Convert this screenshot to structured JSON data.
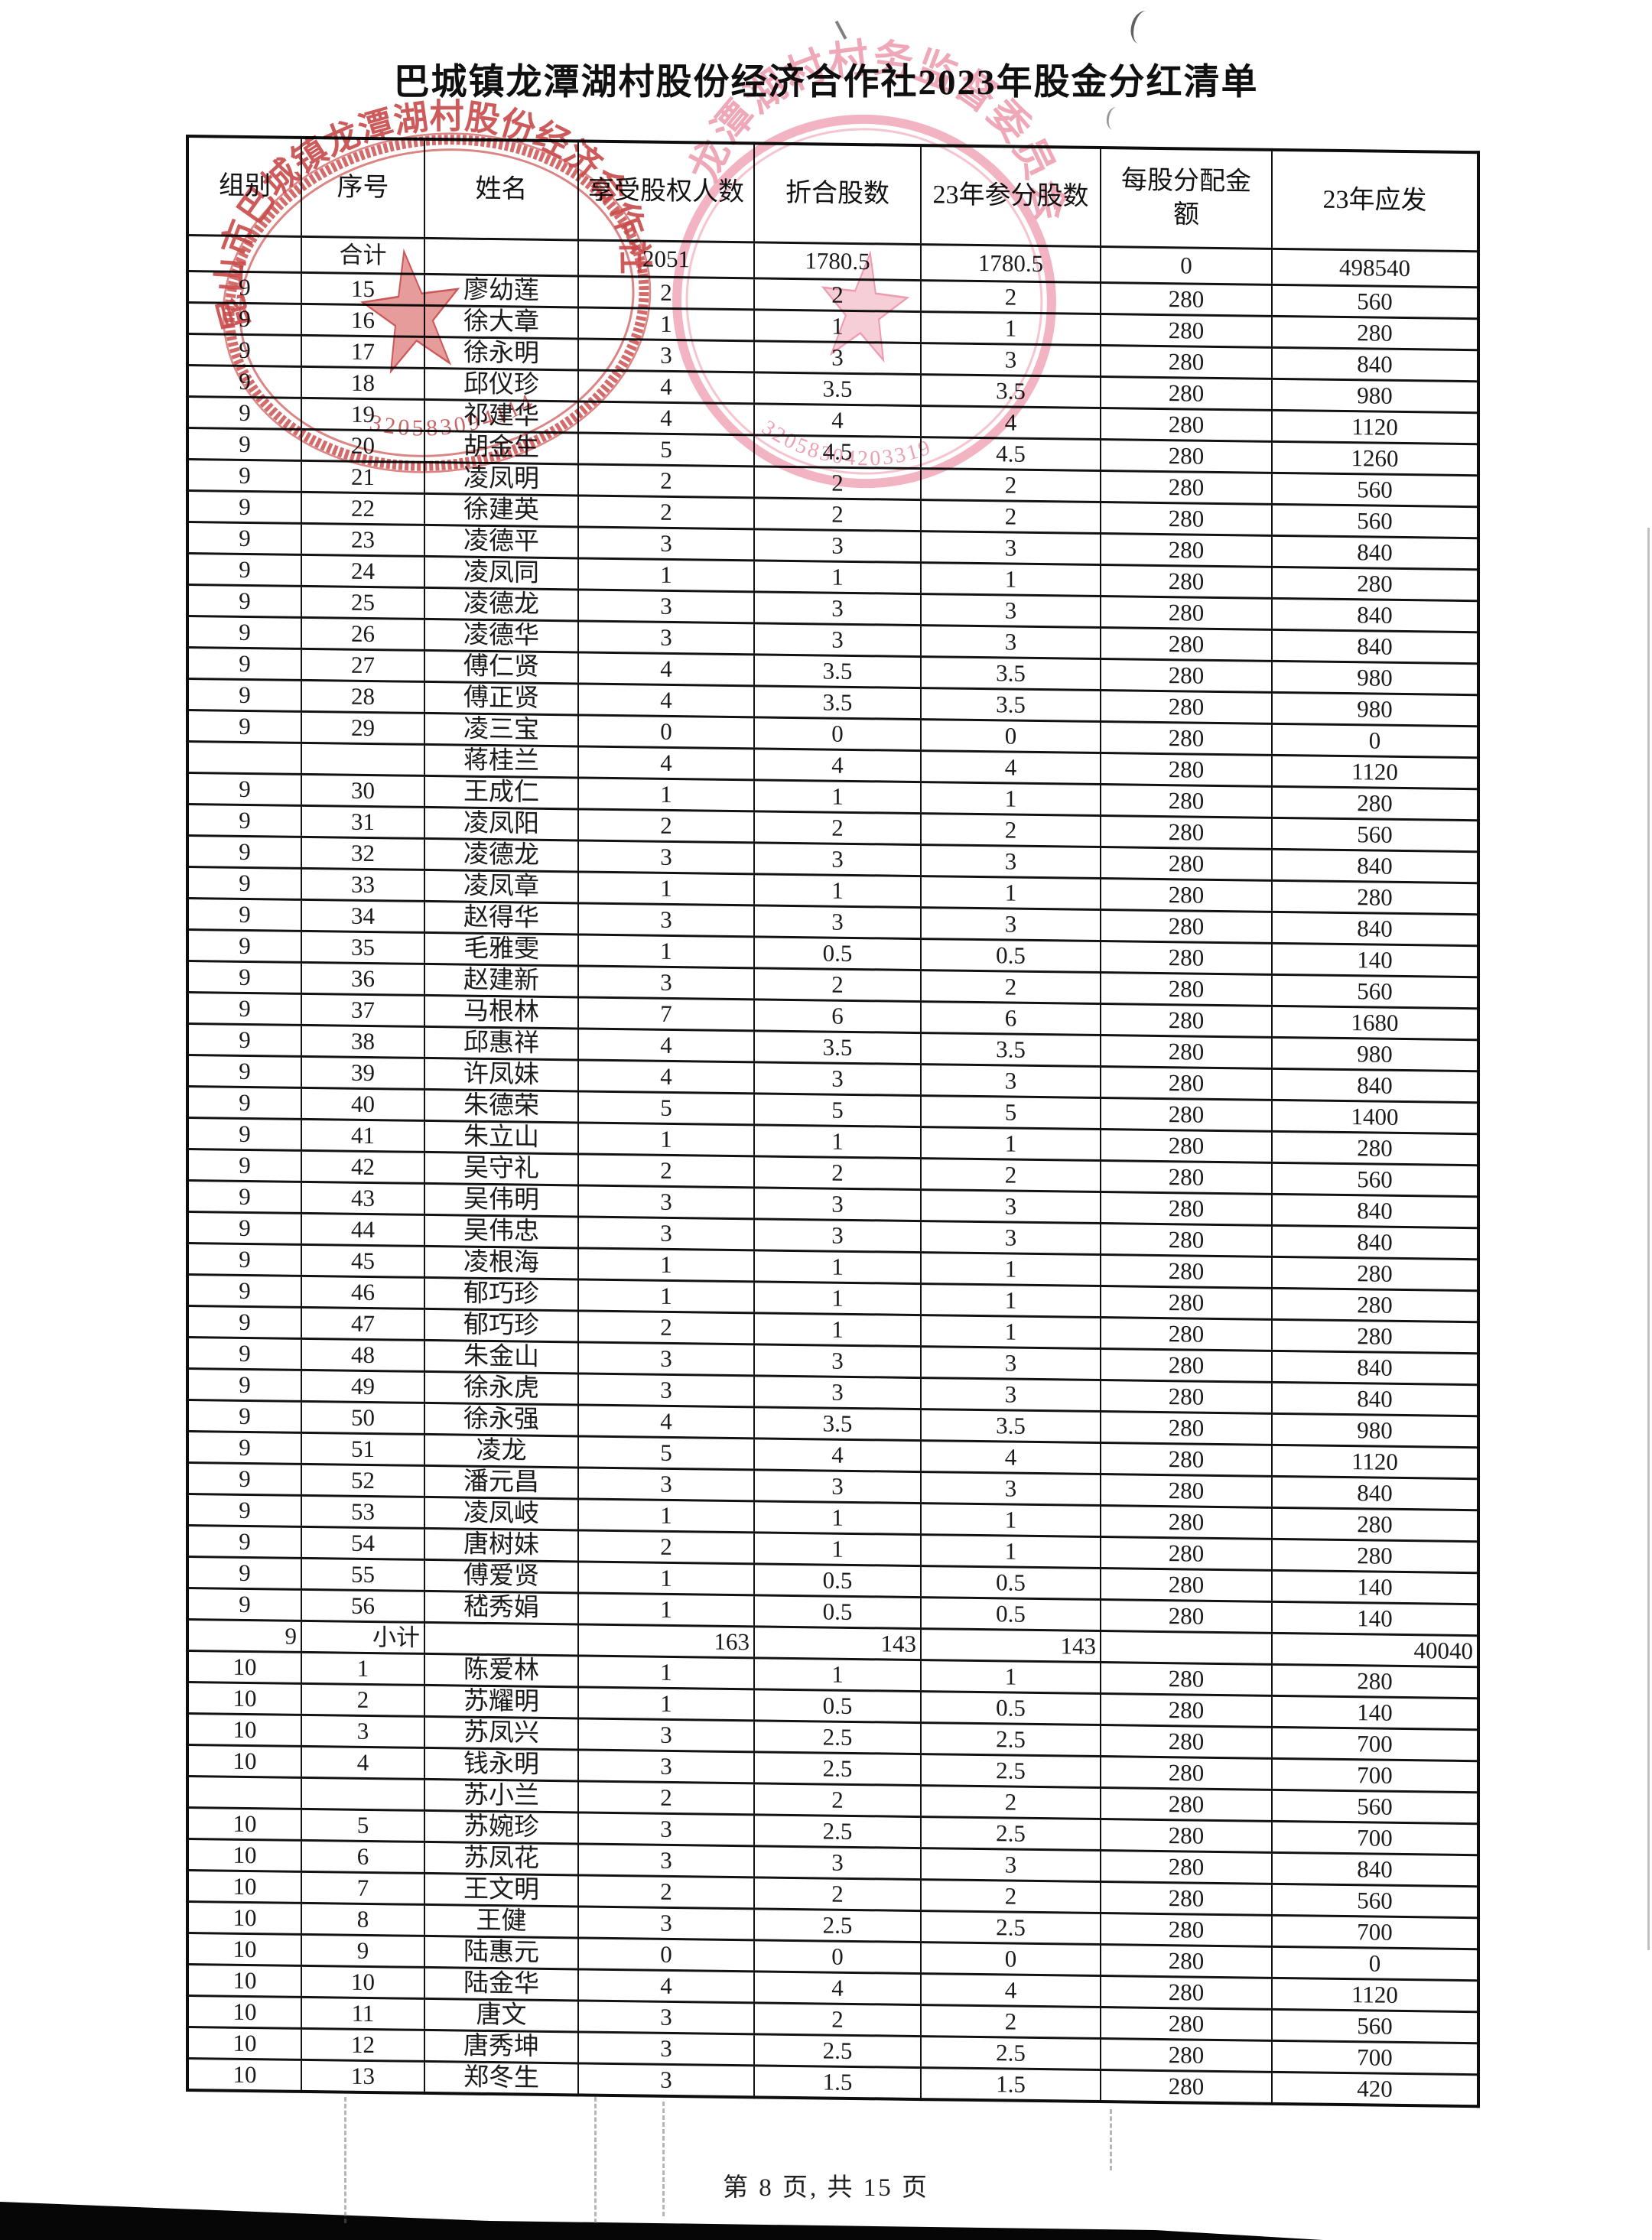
{
  "title": "巴城镇龙潭湖村股份经济合作社2023年股金分红清单",
  "footer": {
    "page_label": "第 8 页, 共 15 页"
  },
  "colors": {
    "stamp_red": "#c94343",
    "stamp_pink": "#efa2b4",
    "ink": "#141414"
  },
  "stamps": {
    "left": {
      "org": "昆山市巴城镇龙潭湖村股份经济合作社",
      "number": "320583094114"
    },
    "right": {
      "org": "龙潭湖村村务监督委员会",
      "number": "32058304203319"
    }
  },
  "table": {
    "headers": [
      "组别",
      "序号",
      "姓名",
      "享受股权人数",
      "折合股数",
      "23年参分股数",
      "每股分配金\n额",
      "23年应发"
    ],
    "rows": [
      [
        "",
        "合计",
        "",
        "2051",
        "1780.5",
        "1780.5",
        "0",
        "498540"
      ],
      [
        "9",
        "15",
        "廖幼莲",
        "2",
        "2",
        "2",
        "280",
        "560"
      ],
      [
        "9",
        "16",
        "徐大章",
        "1",
        "1",
        "1",
        "280",
        "280"
      ],
      [
        "9",
        "17",
        "徐永明",
        "3",
        "3",
        "3",
        "280",
        "840"
      ],
      [
        "9",
        "18",
        "邱仪珍",
        "4",
        "3.5",
        "3.5",
        "280",
        "980"
      ],
      [
        "9",
        "19",
        "祁建华",
        "4",
        "4",
        "4",
        "280",
        "1120"
      ],
      [
        "9",
        "20",
        "胡金生",
        "5",
        "4.5",
        "4.5",
        "280",
        "1260"
      ],
      [
        "9",
        "21",
        "凌凤明",
        "2",
        "2",
        "2",
        "280",
        "560"
      ],
      [
        "9",
        "22",
        "徐建英",
        "2",
        "2",
        "2",
        "280",
        "560"
      ],
      [
        "9",
        "23",
        "凌德平",
        "3",
        "3",
        "3",
        "280",
        "840"
      ],
      [
        "9",
        "24",
        "凌凤同",
        "1",
        "1",
        "1",
        "280",
        "280"
      ],
      [
        "9",
        "25",
        "凌德龙",
        "3",
        "3",
        "3",
        "280",
        "840"
      ],
      [
        "9",
        "26",
        "凌德华",
        "3",
        "3",
        "3",
        "280",
        "840"
      ],
      [
        "9",
        "27",
        "傅仁贤",
        "4",
        "3.5",
        "3.5",
        "280",
        "980"
      ],
      [
        "9",
        "28",
        "傅正贤",
        "4",
        "3.5",
        "3.5",
        "280",
        "980"
      ],
      [
        "9",
        "29",
        "凌三宝",
        "0",
        "0",
        "0",
        "280",
        "0"
      ],
      [
        "",
        "",
        "蒋桂兰",
        "4",
        "4",
        "4",
        "280",
        "1120"
      ],
      [
        "9",
        "30",
        "王成仁",
        "1",
        "1",
        "1",
        "280",
        "280"
      ],
      [
        "9",
        "31",
        "凌凤阳",
        "2",
        "2",
        "2",
        "280",
        "560"
      ],
      [
        "9",
        "32",
        "凌德龙",
        "3",
        "3",
        "3",
        "280",
        "840"
      ],
      [
        "9",
        "33",
        "凌凤章",
        "1",
        "1",
        "1",
        "280",
        "280"
      ],
      [
        "9",
        "34",
        "赵得华",
        "3",
        "3",
        "3",
        "280",
        "840"
      ],
      [
        "9",
        "35",
        "毛雅雯",
        "1",
        "0.5",
        "0.5",
        "280",
        "140"
      ],
      [
        "9",
        "36",
        "赵建新",
        "3",
        "2",
        "2",
        "280",
        "560"
      ],
      [
        "9",
        "37",
        "马根林",
        "7",
        "6",
        "6",
        "280",
        "1680"
      ],
      [
        "9",
        "38",
        "邱惠祥",
        "4",
        "3.5",
        "3.5",
        "280",
        "980"
      ],
      [
        "9",
        "39",
        "许凤妹",
        "4",
        "3",
        "3",
        "280",
        "840"
      ],
      [
        "9",
        "40",
        "朱德荣",
        "5",
        "5",
        "5",
        "280",
        "1400"
      ],
      [
        "9",
        "41",
        "朱立山",
        "1",
        "1",
        "1",
        "280",
        "280"
      ],
      [
        "9",
        "42",
        "吴守礼",
        "2",
        "2",
        "2",
        "280",
        "560"
      ],
      [
        "9",
        "43",
        "吴伟明",
        "3",
        "3",
        "3",
        "280",
        "840"
      ],
      [
        "9",
        "44",
        "吴伟忠",
        "3",
        "3",
        "3",
        "280",
        "840"
      ],
      [
        "9",
        "45",
        "凌根海",
        "1",
        "1",
        "1",
        "280",
        "280"
      ],
      [
        "9",
        "46",
        "郁巧珍",
        "1",
        "1",
        "1",
        "280",
        "280"
      ],
      [
        "9",
        "47",
        "郁巧珍",
        "2",
        "1",
        "1",
        "280",
        "280"
      ],
      [
        "9",
        "48",
        "朱金山",
        "3",
        "3",
        "3",
        "280",
        "840"
      ],
      [
        "9",
        "49",
        "徐永虎",
        "3",
        "3",
        "3",
        "280",
        "840"
      ],
      [
        "9",
        "50",
        "徐永强",
        "4",
        "3.5",
        "3.5",
        "280",
        "980"
      ],
      [
        "9",
        "51",
        "凌龙",
        "5",
        "4",
        "4",
        "280",
        "1120"
      ],
      [
        "9",
        "52",
        "潘元昌",
        "3",
        "3",
        "3",
        "280",
        "840"
      ],
      [
        "9",
        "53",
        "凌凤岐",
        "1",
        "1",
        "1",
        "280",
        "280"
      ],
      [
        "9",
        "54",
        "唐树妹",
        "2",
        "1",
        "1",
        "280",
        "280"
      ],
      [
        "9",
        "55",
        "傅爱贤",
        "1",
        "0.5",
        "0.5",
        "280",
        "140"
      ],
      [
        "9",
        "56",
        "嵇秀娟",
        "1",
        "0.5",
        "0.5",
        "280",
        "140"
      ],
      [
        "9",
        "小计",
        "",
        "163",
        "143",
        "143",
        "",
        "40040"
      ],
      [
        "10",
        "1",
        "陈爱林",
        "1",
        "1",
        "1",
        "280",
        "280"
      ],
      [
        "10",
        "2",
        "苏耀明",
        "1",
        "0.5",
        "0.5",
        "280",
        "140"
      ],
      [
        "10",
        "3",
        "苏凤兴",
        "3",
        "2.5",
        "2.5",
        "280",
        "700"
      ],
      [
        "10",
        "4",
        "钱永明",
        "3",
        "2.5",
        "2.5",
        "280",
        "700"
      ],
      [
        "",
        "",
        "苏小兰",
        "2",
        "2",
        "2",
        "280",
        "560"
      ],
      [
        "10",
        "5",
        "苏婉珍",
        "3",
        "2.5",
        "2.5",
        "280",
        "700"
      ],
      [
        "10",
        "6",
        "苏凤花",
        "3",
        "3",
        "3",
        "280",
        "840"
      ],
      [
        "10",
        "7",
        "王文明",
        "2",
        "2",
        "2",
        "280",
        "560"
      ],
      [
        "10",
        "8",
        "王健",
        "3",
        "2.5",
        "2.5",
        "280",
        "700"
      ],
      [
        "10",
        "9",
        "陆惠元",
        "0",
        "0",
        "0",
        "280",
        "0"
      ],
      [
        "10",
        "10",
        "陆金华",
        "4",
        "4",
        "4",
        "280",
        "1120"
      ],
      [
        "10",
        "11",
        "唐文",
        "3",
        "2",
        "2",
        "280",
        "560"
      ],
      [
        "10",
        "12",
        "唐秀坤",
        "3",
        "2.5",
        "2.5",
        "280",
        "700"
      ],
      [
        "10",
        "13",
        "郑冬生",
        "3",
        "1.5",
        "1.5",
        "280",
        "420"
      ]
    ]
  }
}
